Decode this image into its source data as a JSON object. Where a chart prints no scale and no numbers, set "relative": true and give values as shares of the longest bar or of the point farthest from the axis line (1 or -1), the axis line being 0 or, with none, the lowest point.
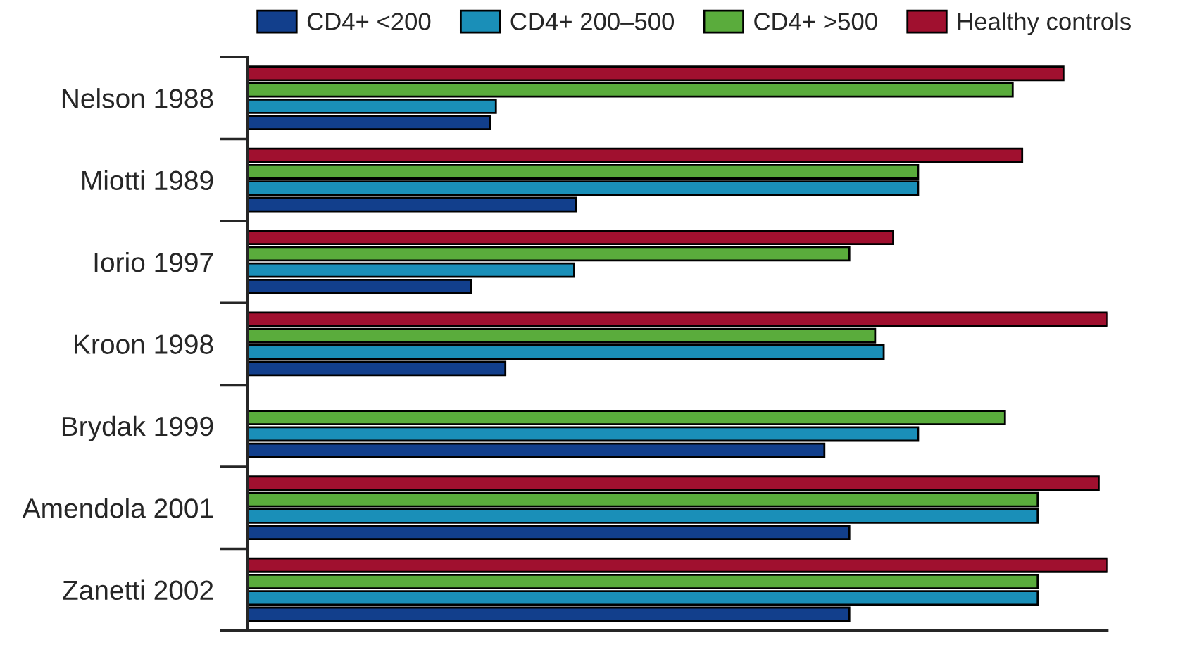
{
  "chart_data": {
    "type": "bar",
    "orientation": "horizontal",
    "relative": true,
    "legend": "top",
    "grid": false,
    "categories": [
      "Nelson 1988",
      "Miotti 1989",
      "Iorio 1997",
      "Kroon 1998",
      "Brydak 1999",
      "Amendola 2001",
      "Zanetti 2002"
    ],
    "series": [
      {
        "name": "CD4+ <200",
        "color": "#123f8c",
        "values": [
          0.282,
          0.382,
          0.26,
          0.3,
          0.671,
          0.7,
          0.7
        ]
      },
      {
        "name": "CD4+ 200–500",
        "color": "#1a8fb8",
        "values": [
          0.289,
          0.78,
          0.38,
          0.74,
          0.78,
          0.919,
          0.919
        ]
      },
      {
        "name": "CD4+ >500",
        "color": "#5aac3c",
        "values": [
          0.89,
          0.78,
          0.7,
          0.73,
          0.881,
          0.919,
          0.919
        ]
      },
      {
        "name": "Healthy controls",
        "color": "#a0102f",
        "values": [
          0.949,
          0.901,
          0.751,
          1.0,
          null,
          0.99,
          1.0
        ]
      }
    ]
  }
}
